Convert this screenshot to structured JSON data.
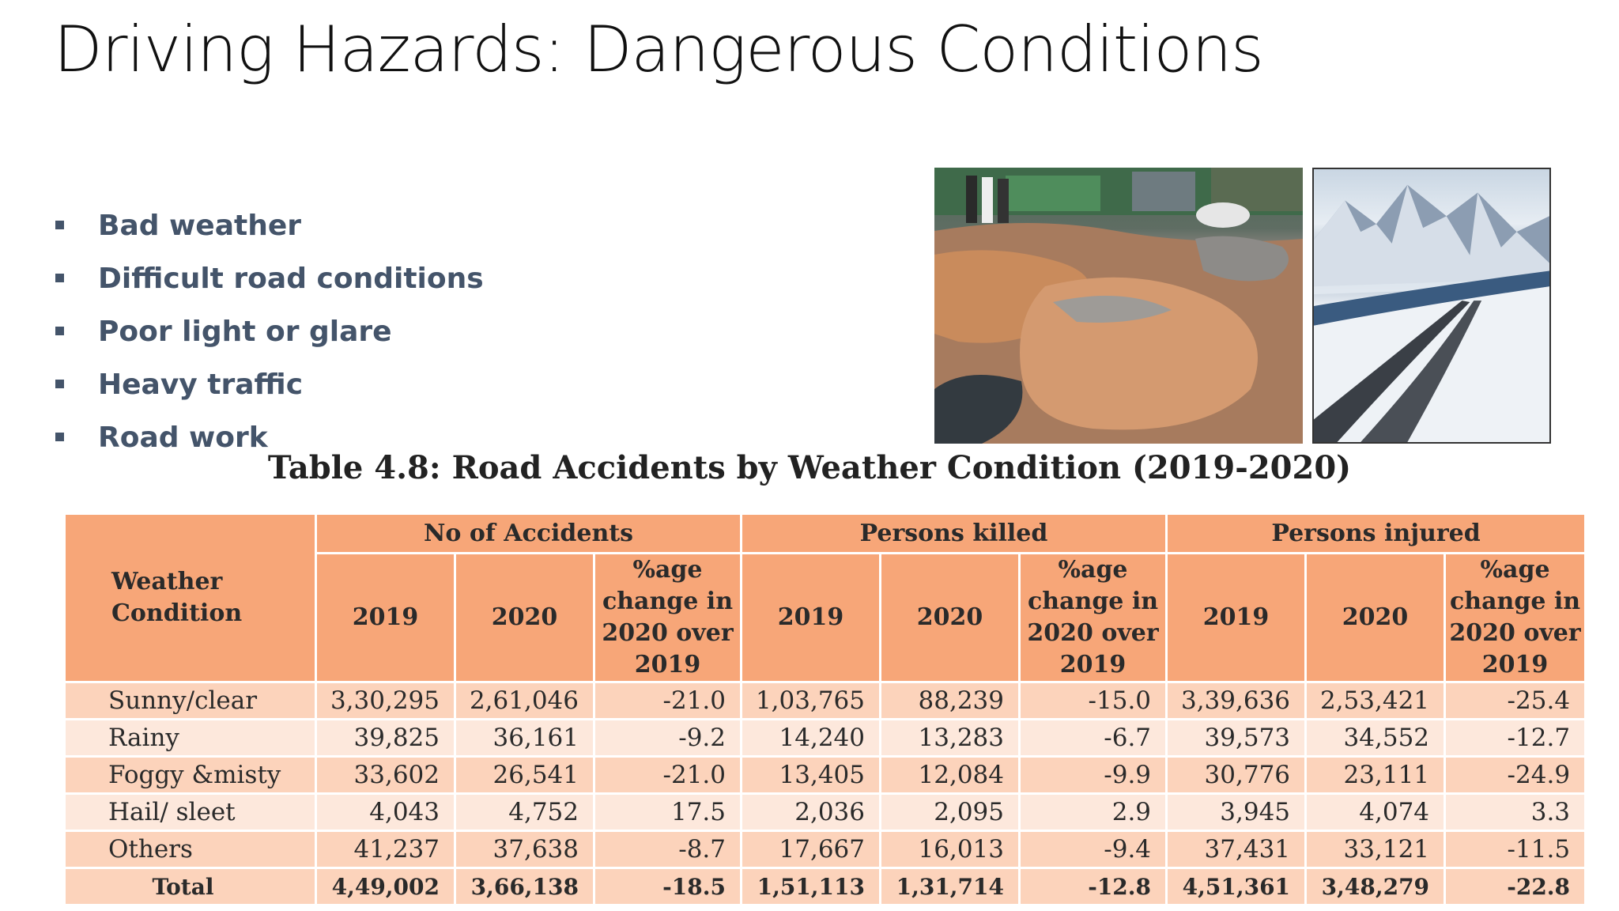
{
  "slide": {
    "title": "Driving Hazards: Dangerous Conditions",
    "bullets": [
      "Bad weather",
      "Difficult road conditions",
      "Poor light or glare",
      "Heavy traffic",
      "Road work"
    ],
    "images": [
      {
        "name": "pothole-flooded-road-photo"
      },
      {
        "name": "snowy-mountain-road-photo"
      }
    ]
  },
  "table": {
    "caption": "Table 4.8: Road Accidents by Weather Condition (2019-2020)",
    "row_header": "Weather Condition",
    "groups": [
      "No of Accidents",
      "Persons killed",
      "Persons injured"
    ],
    "subheaders": [
      "2019",
      "2020",
      "%age change in 2020 over 2019"
    ],
    "rows": [
      {
        "condition": "Sunny/clear",
        "values": [
          "3,30,295",
          "2,61,046",
          "-21.0",
          "1,03,765",
          "88,239",
          "-15.0",
          "3,39,636",
          "2,53,421",
          "-25.4"
        ]
      },
      {
        "condition": "Rainy",
        "values": [
          "39,825",
          "36,161",
          "-9.2",
          "14,240",
          "13,283",
          "-6.7",
          "39,573",
          "34,552",
          "-12.7"
        ]
      },
      {
        "condition": "Foggy &misty",
        "values": [
          "33,602",
          "26,541",
          "-21.0",
          "13,405",
          "12,084",
          "-9.9",
          "30,776",
          "23,111",
          "-24.9"
        ]
      },
      {
        "condition": "Hail/ sleet",
        "values": [
          "4,043",
          "4,752",
          "17.5",
          "2,036",
          "2,095",
          "2.9",
          "3,945",
          "4,074",
          "3.3"
        ]
      },
      {
        "condition": "Others",
        "values": [
          "41,237",
          "37,638",
          "-8.7",
          "17,667",
          "16,013",
          "-9.4",
          "37,431",
          "33,121",
          "-11.5"
        ]
      }
    ],
    "total": {
      "condition": "Total",
      "values": [
        "4,49,002",
        "3,66,138",
        "-18.5",
        "1,51,113",
        "1,31,714",
        "-12.8",
        "4,51,361",
        "3,48,279",
        "-22.8"
      ]
    }
  }
}
